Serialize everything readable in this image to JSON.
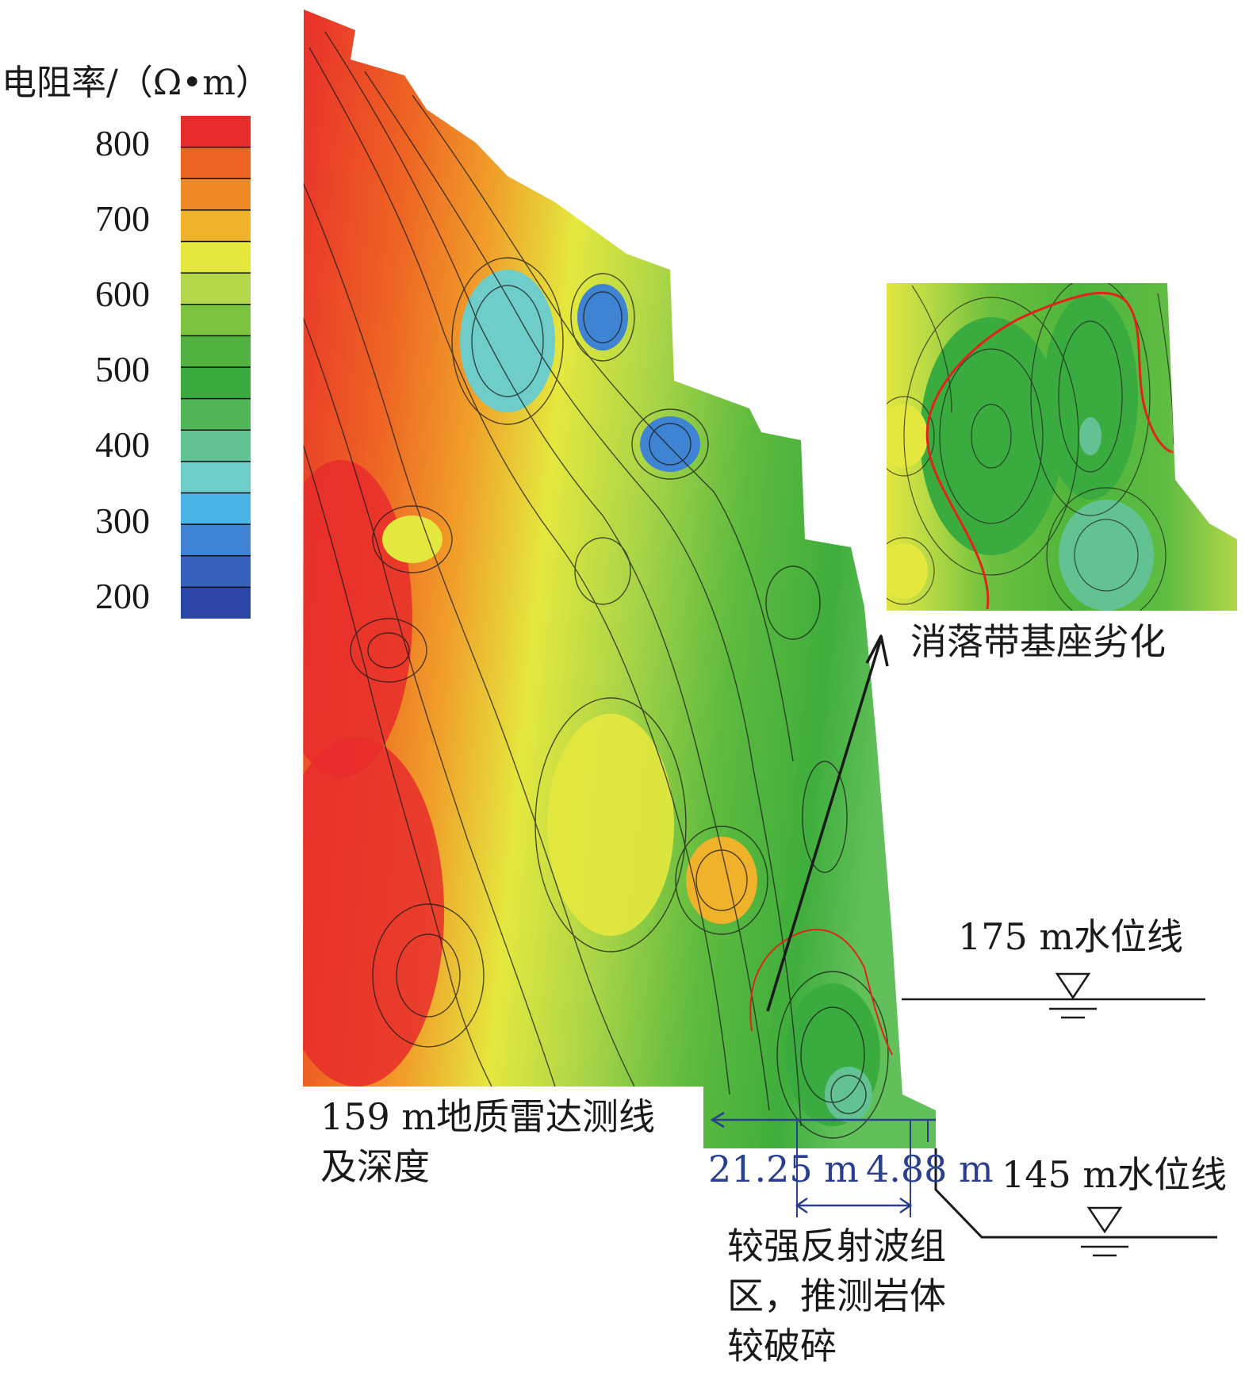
{
  "legend": {
    "title": "电阻率/（Ω•m）",
    "ticks": [
      "800",
      "700",
      "600",
      "500",
      "400",
      "300",
      "200"
    ],
    "colors": [
      "#2d46a6",
      "#3760bb",
      "#3f84d2",
      "#4bb4e6",
      "#6ecdc9",
      "#62c291",
      "#52b557",
      "#3aab3e",
      "#52b23f",
      "#7cc33f",
      "#b3d748",
      "#e4e83e",
      "#f0b12b",
      "#ef8a27",
      "#ee6423",
      "#e72b2b"
    ]
  },
  "annotations": {
    "inset_label": "消落带基座劣化",
    "radar_line": "159 m地质雷达测线",
    "radar_line_2": "及深度",
    "dim_1": "21.25 m",
    "dim_2": "4.88 m",
    "reflection_1": "较强反射波组",
    "reflection_2": "区，推测岩体",
    "reflection_3": "较破碎"
  },
  "water_levels": {
    "level_175": "175 m水位线",
    "level_145": "145 m水位线"
  }
}
